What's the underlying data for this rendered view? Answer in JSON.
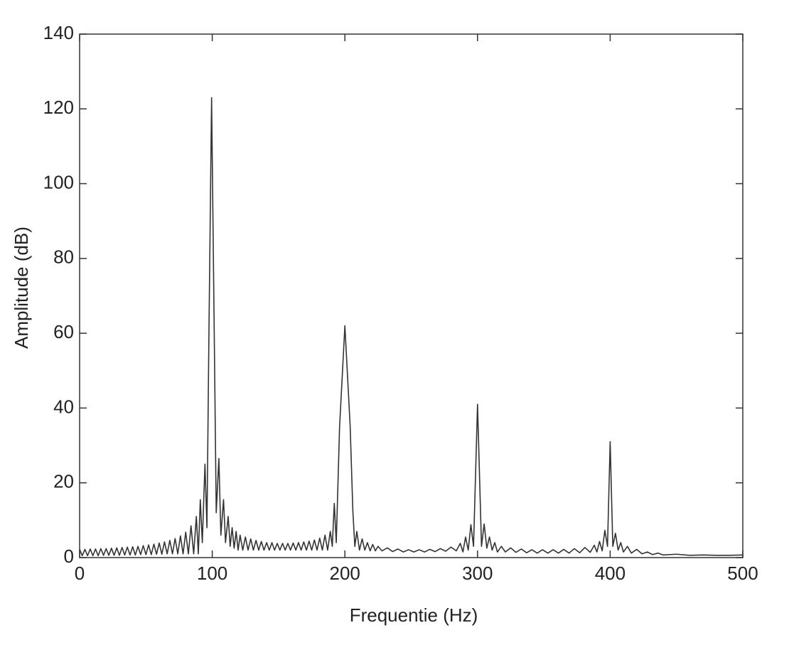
{
  "chart_data": {
    "type": "line",
    "xlabel": "Frequentie (Hz)",
    "ylabel": "Amplitude (dB)",
    "xlim": [
      0,
      500
    ],
    "xticks": [
      0,
      100,
      200,
      300,
      400,
      500
    ],
    "ylim": [
      0,
      140
    ],
    "yticks": [
      0,
      20,
      40,
      60,
      80,
      100,
      120,
      140
    ],
    "grid": false,
    "x": [
      0,
      2,
      4,
      6,
      8,
      10,
      12,
      14,
      16,
      18,
      20,
      22,
      24,
      26,
      28,
      30,
      32,
      34,
      36,
      38,
      40,
      42,
      44,
      46,
      48,
      50,
      52,
      54,
      56,
      58,
      60,
      62,
      64,
      66,
      68,
      70,
      72,
      74,
      76,
      78,
      80,
      82,
      84,
      86,
      88,
      89.5,
      91,
      92.5,
      94.5,
      96,
      97.5,
      99.5,
      101.5,
      103,
      105,
      106.5,
      108.5,
      110,
      112,
      113.5,
      115,
      116.5,
      118,
      119.5,
      121,
      123,
      125,
      127,
      129,
      131,
      133,
      135,
      137,
      139,
      141,
      143,
      145,
      147,
      149,
      151,
      153,
      155,
      157,
      159,
      161,
      163,
      165,
      167,
      169,
      171,
      173,
      175,
      177,
      179,
      181,
      183,
      185,
      187,
      189,
      190.5,
      192,
      193.5,
      196,
      200,
      204,
      206,
      207.5,
      209,
      211,
      213,
      215,
      217,
      219,
      221,
      223,
      225,
      228,
      232,
      236,
      240,
      244,
      248,
      252,
      256,
      260,
      264,
      268,
      272,
      276,
      280,
      284,
      287,
      289,
      291,
      293,
      295,
      297,
      300,
      303,
      305,
      307,
      309,
      311,
      313,
      315,
      318,
      321,
      325,
      329,
      333,
      337,
      341,
      345,
      349,
      353,
      357,
      361,
      365,
      369,
      373,
      377,
      381,
      385,
      388,
      390,
      392,
      394,
      396,
      398,
      400,
      402,
      404,
      406,
      408,
      410,
      413,
      416,
      420,
      424,
      428,
      432,
      436,
      440,
      450,
      460,
      470,
      480,
      490,
      500
    ],
    "series": [
      {
        "color": "#333333",
        "values": [
          2.2,
          0.5,
          2.2,
          0.5,
          2.3,
          0.5,
          2.3,
          0.5,
          2.4,
          0.6,
          2.4,
          0.6,
          2.5,
          0.6,
          2.6,
          0.6,
          2.7,
          0.7,
          2.8,
          0.7,
          2.9,
          0.7,
          3,
          0.8,
          3.2,
          0.8,
          3.4,
          0.8,
          3.6,
          0.9,
          3.9,
          0.9,
          4.2,
          1,
          4.6,
          1,
          5.1,
          1,
          5.8,
          1,
          6.8,
          1,
          8.5,
          1,
          11,
          1,
          15.5,
          4,
          25,
          8,
          60,
          123,
          60,
          12,
          26.5,
          6,
          15.5,
          4,
          11,
          3,
          8,
          2.5,
          7,
          2,
          6,
          2,
          5.5,
          2,
          5,
          2,
          4.6,
          2,
          4.3,
          2,
          4,
          2,
          4,
          2,
          3.8,
          2,
          3.8,
          2,
          3.8,
          2,
          3.9,
          2,
          4,
          2,
          4.2,
          2,
          4.4,
          2,
          4.7,
          2,
          5.2,
          2,
          6,
          2,
          7,
          3,
          14.5,
          4,
          35,
          62,
          35,
          12.5,
          3,
          7,
          2,
          5,
          2,
          4,
          1.8,
          3.5,
          1.8,
          3,
          1.8,
          2.6,
          1.6,
          2.3,
          1.5,
          2.1,
          1.5,
          2.1,
          1.5,
          2.2,
          1.6,
          2.4,
          1.7,
          2.8,
          1.8,
          3.8,
          1.5,
          5.5,
          2,
          8.8,
          3,
          41,
          3,
          9,
          2.5,
          5.5,
          2,
          4,
          1.5,
          3,
          1.5,
          2.6,
          1.4,
          2.3,
          1.3,
          2.1,
          1.2,
          2.1,
          1.2,
          2.1,
          1.2,
          2.2,
          1.2,
          2.4,
          1.3,
          2.7,
          1.4,
          3.3,
          1.5,
          4.3,
          1.8,
          7.3,
          3,
          31,
          3,
          6.5,
          2,
          4,
          1.5,
          3,
          1.2,
          2.2,
          1,
          1.5,
          0.8,
          1.2,
          0.7,
          0.9,
          0.6,
          0.7,
          0.6,
          0.6,
          0.7
        ]
      }
    ]
  }
}
